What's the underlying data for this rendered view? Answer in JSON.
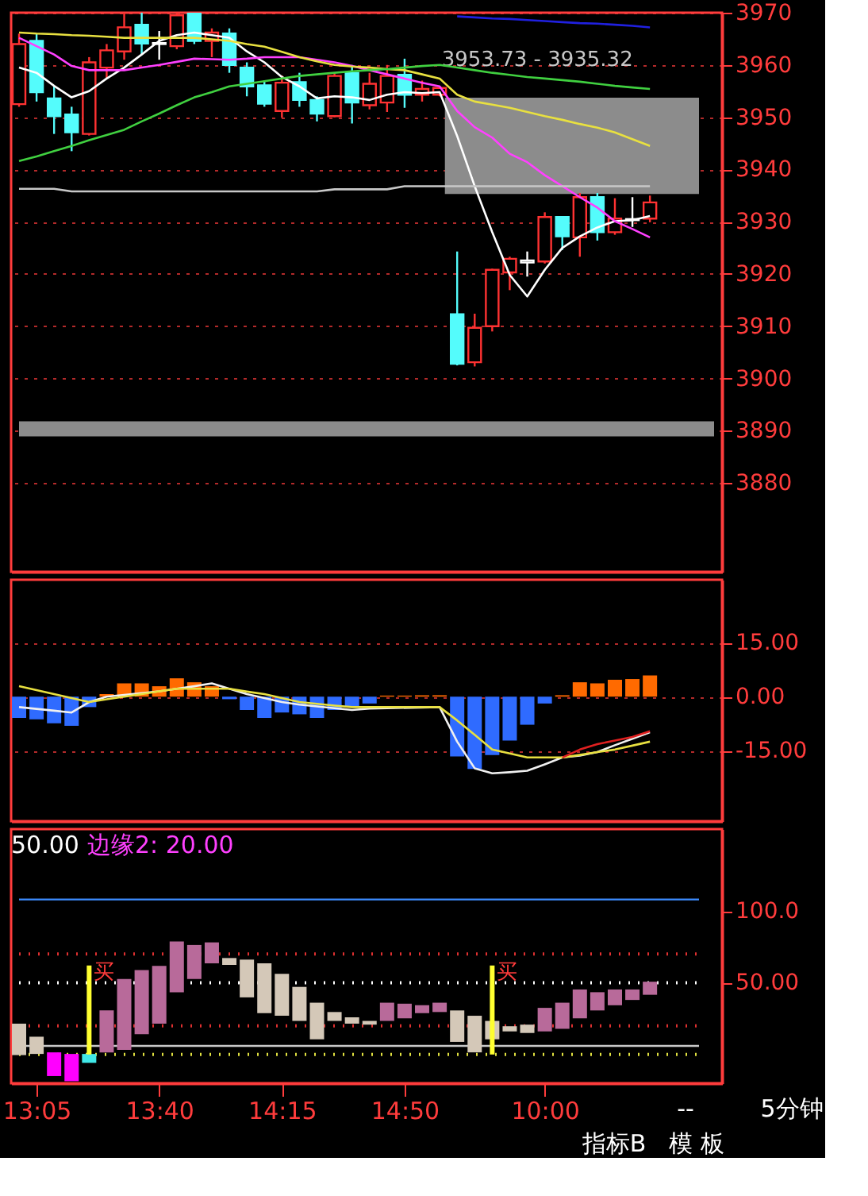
{
  "chart_data": [
    {
      "type": "candlestick",
      "categories": [
        null,
        null,
        null,
        null,
        null,
        null,
        null,
        null,
        null,
        null,
        null,
        null,
        null,
        null,
        null,
        null,
        null,
        null,
        null,
        null,
        null,
        null,
        null,
        null,
        null,
        null,
        null,
        null,
        null,
        null,
        null,
        null,
        null,
        null,
        null,
        null,
        null
      ],
      "ohlc": [
        [
          3952.5,
          3966,
          3952,
          3964.0
        ],
        [
          3964.6,
          3966,
          3953,
          3954.8
        ],
        [
          3953.6,
          3956,
          3946.8,
          3950.2
        ],
        [
          3950.5,
          3952,
          3943.5,
          3947.1
        ],
        [
          3946.8,
          3961.5,
          3946.5,
          3960.5
        ],
        [
          3959.5,
          3964,
          3957.5,
          3962.8
        ],
        [
          3962.6,
          3970,
          3961,
          3967.2
        ],
        [
          3967.7,
          3970,
          3962,
          3964.1
        ],
        [
          3964.0,
          3966.5,
          3961,
          3964.2
        ],
        [
          3963.6,
          3970,
          3963,
          3969.5
        ],
        [
          3970,
          3970,
          3964,
          3964.6
        ],
        [
          3964.6,
          3967,
          3961.5,
          3966.2
        ],
        [
          3966,
          3967,
          3958.5,
          3960
        ],
        [
          3959.5,
          3960.5,
          3954,
          3955.9
        ],
        [
          3956.1,
          3957,
          3952,
          3952.6
        ],
        [
          3951.2,
          3958,
          3949.9,
          3956.6
        ],
        [
          3956.7,
          3958.5,
          3952,
          3953.3
        ],
        [
          3953.3,
          3954,
          3949.2,
          3950.7
        ],
        [
          3950.2,
          3958.5,
          3950,
          3957.9
        ],
        [
          3958.5,
          3960,
          3948.8,
          3952.8
        ],
        [
          3952.3,
          3958.5,
          3951.5,
          3956.4
        ],
        [
          3952.8,
          3960,
          3951,
          3957.9
        ],
        [
          3958.1,
          3961.2,
          3951.8,
          3954.3
        ],
        [
          3954.3,
          3957,
          3953,
          3955.4
        ],
        [
          3954.3,
          3956,
          3954,
          3955.6
        ],
        [
          3912.3,
          3924.3,
          3902.5,
          3902.8
        ],
        [
          3903.1,
          3912.4,
          3902.3,
          3909.7
        ],
        [
          3910.0,
          3921,
          3909,
          3920.8
        ],
        [
          3920.3,
          3923.3,
          3916.9,
          3922.9
        ],
        [
          3922.2,
          3924.3,
          3919.5,
          3922.6
        ],
        [
          3922.4,
          3931.8,
          3922,
          3930.9
        ],
        [
          3930.9,
          3931,
          3924.6,
          3927.2
        ],
        [
          3927,
          3935.5,
          3923.3,
          3934.7
        ],
        [
          3934.7,
          3935.5,
          3926.4,
          3928.0
        ],
        [
          3928.0,
          3934.5,
          3927.5,
          3930.6
        ],
        [
          3930.3,
          3934.7,
          3929,
          3930.5
        ],
        [
          3930.6,
          3935,
          3929.9,
          3933.7
        ]
      ],
      "colors": [
        "#ff3232",
        "#54fcfc",
        "#54fcfc",
        "#54fcfc",
        "#ff3232",
        "#ff3232",
        "#ff3232",
        "#54fcfc",
        "#ffffff",
        "#ff3232",
        "#54fcfc",
        "#ff3232",
        "#54fcfc",
        "#54fcfc",
        "#54fcfc",
        "#ff3232",
        "#54fcfc",
        "#54fcfc",
        "#ff3232",
        "#54fcfc",
        "#ff3232",
        "#ff3232",
        "#54fcfc",
        "#ff3232",
        "#ff3232",
        "#54fcfc",
        "#ff3232",
        "#ff3232",
        "#ff3232",
        "#ffffff",
        "#ff3232",
        "#54fcfc",
        "#ff3232",
        "#54fcfc",
        "#ff3232",
        "#ffffff",
        "#ff3232"
      ],
      "series": [
        {
          "type": "line",
          "color": "#ffffff",
          "values": [
            3959.5,
            3958.5,
            3956,
            3953.8,
            3955,
            3957.4,
            3959.5,
            3962,
            3964.6,
            3965.7,
            3966.2,
            3965.7,
            3965.2,
            3962.6,
            3960.5,
            3957.7,
            3955.9,
            3953.6,
            3954,
            3953.8,
            3953.3,
            3954.3,
            3954.8,
            3954.6,
            3954.8,
            3946.4,
            3936.8,
            3928,
            3919.8,
            3915.7,
            3920.8,
            3925,
            3927.2,
            3928.9,
            3930.1,
            3930.3,
            3931.1
          ]
        },
        {
          "type": "line",
          "color": "#ff40ff",
          "values": [
            3965.2,
            3963.6,
            3962,
            3959.8,
            3959,
            3959,
            3959,
            3959.5,
            3960,
            3960.6,
            3961.2,
            3961.1,
            3961,
            3961.2,
            3961.5,
            3961.5,
            3961.5,
            3961,
            3960.5,
            3959.8,
            3959,
            3958.2,
            3957.4,
            3956.6,
            3955.9,
            3951.2,
            3948.1,
            3946.1,
            3943,
            3941.4,
            3938.9,
            3936.8,
            3934.7,
            3932.7,
            3930.1,
            3928.6,
            3927
          ]
        },
        {
          "type": "line",
          "color": "#e8e040",
          "values": [
            3966.2,
            3966,
            3965.9,
            3965.7,
            3965.6,
            3965.4,
            3965.2,
            3965.2,
            3965.2,
            3965.2,
            3965.2,
            3964.9,
            3964.6,
            3964,
            3963.5,
            3962.5,
            3961.5,
            3960.7,
            3960,
            3959.7,
            3959.5,
            3959.2,
            3959,
            3958.2,
            3957.4,
            3954.3,
            3953,
            3952.4,
            3951.8,
            3951,
            3950.2,
            3949.5,
            3948.7,
            3948,
            3947.1,
            3945.8,
            3944.5
          ]
        },
        {
          "type": "line",
          "color": "#40d040",
          "values": [
            3941.6,
            3942.5,
            3943.5,
            3944.5,
            3945.6,
            3946.6,
            3947.6,
            3949.2,
            3950.7,
            3952.3,
            3953.8,
            3954.8,
            3955.9,
            3956.4,
            3956.9,
            3957.4,
            3957.9,
            3958.2,
            3958.5,
            3958.8,
            3959,
            3959.2,
            3959.5,
            3959.8,
            3960,
            3959.5,
            3959,
            3958.5,
            3958.1,
            3957.7,
            3957.4,
            3957.1,
            3956.8,
            3956.4,
            3956,
            3955.7,
            3955.4
          ]
        },
        {
          "type": "line",
          "color": "#c8c8c8",
          "values": [
            3936.3,
            3936.3,
            3936.3,
            3935.8,
            3935.8,
            3935.8,
            3935.8,
            3935.8,
            3935.8,
            3935.8,
            3935.8,
            3935.8,
            3935.8,
            3935.8,
            3935.8,
            3935.8,
            3935.8,
            3935.8,
            3936.2,
            3936.2,
            3936.2,
            3936.2,
            3936.8,
            3936.8,
            3936.8,
            3936.8,
            3936.8,
            3936.8,
            3936.8,
            3936.8,
            3936.8,
            3936.8,
            3936.8,
            3936.8,
            3936.8,
            3936.8,
            3936.8
          ]
        },
        {
          "type": "line",
          "color": "#2020e0",
          "values": [
            null,
            null,
            null,
            null,
            null,
            null,
            null,
            null,
            null,
            null,
            null,
            null,
            null,
            null,
            null,
            null,
            null,
            null,
            null,
            null,
            null,
            null,
            null,
            null,
            null,
            3969.3,
            3969.1,
            3968.9,
            3968.8,
            3968.6,
            3968.4,
            3968.2,
            3968.0,
            3967.9,
            3967.7,
            3967.5,
            3967.2
          ]
        }
      ],
      "bands": [
        {
          "axis": "y",
          "from": 3935.32,
          "to": 3953.73,
          "label": "3953.73 - 3935.32",
          "color": "#8c8c8c"
        },
        {
          "axis": "y",
          "from": 3888.9,
          "to": 3891.8,
          "color": "#8c8c8c"
        }
      ],
      "ylim": [
        3863,
        3970
      ],
      "yticks": [
        3880,
        3890,
        3900,
        3910,
        3920,
        3930,
        3940,
        3950,
        3960,
        3970
      ],
      "grid": "y",
      "tick_labels": "y"
    },
    {
      "type": "bar",
      "categories": [
        null,
        null,
        null,
        null,
        null,
        null,
        null,
        null,
        null,
        null,
        null,
        null,
        null,
        null,
        null,
        null,
        null,
        null,
        null,
        null,
        null,
        null,
        null,
        null,
        null,
        null,
        null,
        null,
        null,
        null,
        null,
        null,
        null,
        null,
        null,
        null,
        null
      ],
      "values": [
        -5.9,
        -6.3,
        -7.4,
        -8.1,
        -2.9,
        0.7,
        3.7,
        3.7,
        2.9,
        5.1,
        4.0,
        2.9,
        -0.7,
        -3.7,
        -5.9,
        -4.4,
        -4.9,
        -5.9,
        -3.7,
        -2.9,
        -1.9,
        0.3,
        0.3,
        0.4,
        0.4,
        -16.6,
        -20.1,
        -16.2,
        -12.2,
        -7.8,
        -1.9,
        0.4,
        4.0,
        3.7,
        4.7,
        4.9,
        5.9
      ],
      "colors": [
        "#2f6bff",
        "#2f6bff",
        "#2f6bff",
        "#2f6bff",
        "#2f6bff",
        "#ff6a00",
        "#ff6a00",
        "#ff6a00",
        "#ff6a00",
        "#ff6a00",
        "#ff6a00",
        "#ff6a00",
        "#2f6bff",
        "#2f6bff",
        "#2f6bff",
        "#2f6bff",
        "#2f6bff",
        "#2f6bff",
        "#2f6bff",
        "#2f6bff",
        "#2f6bff",
        "#ff6a00",
        "#ff6a00",
        "#ff6a00",
        "#ff6a00",
        "#2f6bff",
        "#2f6bff",
        "#2f6bff",
        "#2f6bff",
        "#2f6bff",
        "#2f6bff",
        "#ff6a00",
        "#ff6a00",
        "#ff6a00",
        "#ff6a00",
        "#ff6a00",
        "#ff6a00"
      ],
      "series": [
        {
          "type": "line",
          "color": "#f0f0f0",
          "values": [
            -2.9,
            -3.4,
            -3.9,
            -4.4,
            -1.5,
            0,
            0.5,
            1,
            1.5,
            2.2,
            2.9,
            3.7,
            2.2,
            0.7,
            -0.4,
            -1.5,
            -2.2,
            -2.7,
            -3.2,
            -3.7,
            -3.3,
            null,
            null,
            null,
            -2.9,
            -12.5,
            -19.9,
            -21.3,
            -21.0,
            -20.6,
            -18.8,
            -16.9,
            -16.4,
            -15.4,
            -13.5,
            -11.7,
            -9.9
          ]
        },
        {
          "type": "line",
          "color": "#e8e040",
          "values": [
            2.9,
            1.8,
            0.7,
            -0.4,
            -1.5,
            -0.7,
            0,
            0.7,
            1.5,
            2.2,
            2.2,
            2.2,
            2.2,
            1.4,
            0.7,
            -0.4,
            -1.5,
            -2.0,
            -2.5,
            -2.9,
            -2.9,
            -2.9,
            -2.9,
            -2.9,
            -2.9,
            -6.6,
            -10.6,
            -14.7,
            -15.8,
            -16.9,
            -16.9,
            -16.9,
            -16.2,
            -15.4,
            -14.7,
            -13.6,
            -12.5
          ]
        },
        {
          "type": "line",
          "color": "#e02020",
          "values": [
            null,
            null,
            null,
            null,
            null,
            null,
            null,
            null,
            null,
            null,
            null,
            null,
            null,
            null,
            null,
            null,
            null,
            null,
            null,
            null,
            null,
            null,
            null,
            null,
            null,
            null,
            null,
            null,
            null,
            null,
            null,
            -16.9,
            -14.7,
            -13.2,
            -12.2,
            -11.2,
            -9.6
          ]
        }
      ],
      "ylim": [
        -34.6,
        32.5
      ],
      "yticks": [
        {
          "value": 15,
          "label": "15.00"
        },
        {
          "value": 0,
          "label": "0.00"
        },
        {
          "value": -15,
          "label": "-15.00"
        }
      ],
      "grid": "y",
      "tick_labels": "y"
    },
    {
      "type": "bar",
      "categories": [
        null,
        "13:05",
        null,
        null,
        null,
        null,
        null,
        null,
        "13:40",
        null,
        null,
        null,
        null,
        null,
        null,
        "14:15",
        null,
        null,
        null,
        null,
        null,
        null,
        "14:50",
        null,
        null,
        null,
        null,
        null,
        null,
        null,
        "10:00",
        null,
        null,
        null,
        null,
        null,
        null
      ],
      "base": [
        -0.4,
        0.4,
        -15,
        -18.6,
        -5.8,
        1.5,
        3.3,
        14.2,
        21.5,
        43.4,
        52.6,
        63.5,
        62.4,
        39.8,
        28.8,
        27.0,
        23.4,
        10.6,
        23.4,
        21.5,
        20.8,
        23.4,
        25.2,
        28.8,
        29.6,
        8.8,
        1.5,
        10.6,
        16.1,
        15,
        16.1,
        17.9,
        25.2,
        30.7,
        34.3,
        38,
        41.6
      ],
      "values": [
        21.9,
        12,
        16.5,
        19,
        6.2,
        29.2,
        49.3,
        44.6,
        40.2,
        35.4,
        23.7,
        14.6,
        4.8,
        26.3,
        34.7,
        29.2,
        23.7,
        25.5,
        6.2,
        4.4,
        2.6,
        12.7,
        10.2,
        5.5,
        6.5,
        21.9,
        25.5,
        12.8,
        3.6,
        5.8,
        16.4,
        18.2,
        20.1,
        12.7,
        11,
        7.3,
        9.1
      ],
      "colors": [
        "#d4c8b8",
        "#d4c8b8",
        "#ff00ff",
        "#ff00ff",
        "#40e8e8",
        "#b86a9a",
        "#b86a9a",
        "#b86a9a",
        "#b86a9a",
        "#b86a9a",
        "#b86a9a",
        "#b86a9a",
        "#d4c8b8",
        "#d4c8b8",
        "#d4c8b8",
        "#d4c8b8",
        "#d4c8b8",
        "#d4c8b8",
        "#d4c8b8",
        "#d4c8b8",
        "#d4c8b8",
        "#b86a9a",
        "#b86a9a",
        "#b86a9a",
        "#b86a9a",
        "#d4c8b8",
        "#d4c8b8",
        "#d4c8b8",
        "#d4c8b8",
        "#d4c8b8",
        "#b86a9a",
        "#b86a9a",
        "#b86a9a",
        "#b86a9a",
        "#b86a9a",
        "#b86a9a",
        "#b86a9a"
      ],
      "series": [
        {
          "type": "bar",
          "color": "#ffff30",
          "base": [
            null,
            null,
            null,
            null,
            0,
            null,
            null,
            null,
            null,
            null,
            null,
            null,
            null,
            null,
            null,
            null,
            null,
            null,
            null,
            null,
            null,
            null,
            null,
            null,
            null,
            null,
            null,
            0,
            null,
            null,
            null,
            null,
            null,
            null,
            null,
            null,
            null
          ],
          "values": [
            null,
            null,
            null,
            null,
            62,
            null,
            null,
            null,
            null,
            null,
            null,
            null,
            null,
            null,
            null,
            null,
            null,
            null,
            null,
            null,
            null,
            null,
            null,
            null,
            null,
            null,
            null,
            62,
            null,
            null,
            null,
            null,
            null,
            null,
            null,
            null,
            null
          ],
          "value_labels": [
            null,
            null,
            null,
            null,
            "买",
            null,
            null,
            null,
            null,
            null,
            null,
            null,
            null,
            null,
            null,
            null,
            null,
            null,
            null,
            null,
            null,
            null,
            null,
            null,
            null,
            null,
            null,
            "买",
            null,
            null,
            null,
            null,
            null,
            null,
            null,
            null,
            null
          ]
        }
      ],
      "ref_lines": [
        {
          "axis": "y",
          "value": 108,
          "color": "#3c8cff",
          "line_style": "solid"
        },
        {
          "axis": "y",
          "value": 70,
          "color": "#e03030",
          "line_style": "dotted"
        },
        {
          "axis": "y",
          "value": 50,
          "color": "#ffffff",
          "line_style": "dotted"
        },
        {
          "axis": "y",
          "value": 20,
          "color": "#e03030",
          "line_style": "dotted"
        },
        {
          "axis": "y",
          "value": 6,
          "color": "#c8c8c8",
          "line_style": "solid"
        },
        {
          "axis": "y",
          "value": 0,
          "color": "#e0e040",
          "line_style": "dotted"
        }
      ],
      "ylim": [
        -20,
        157
      ],
      "yticks": [
        {
          "value": 100,
          "label": "100.0"
        },
        {
          "value": 50,
          "label": "50.00"
        }
      ],
      "annotations": [
        "50.00",
        "边缘2: 20.00",
        "--",
        "5分钟",
        "指标B",
        "模 板"
      ]
    }
  ]
}
